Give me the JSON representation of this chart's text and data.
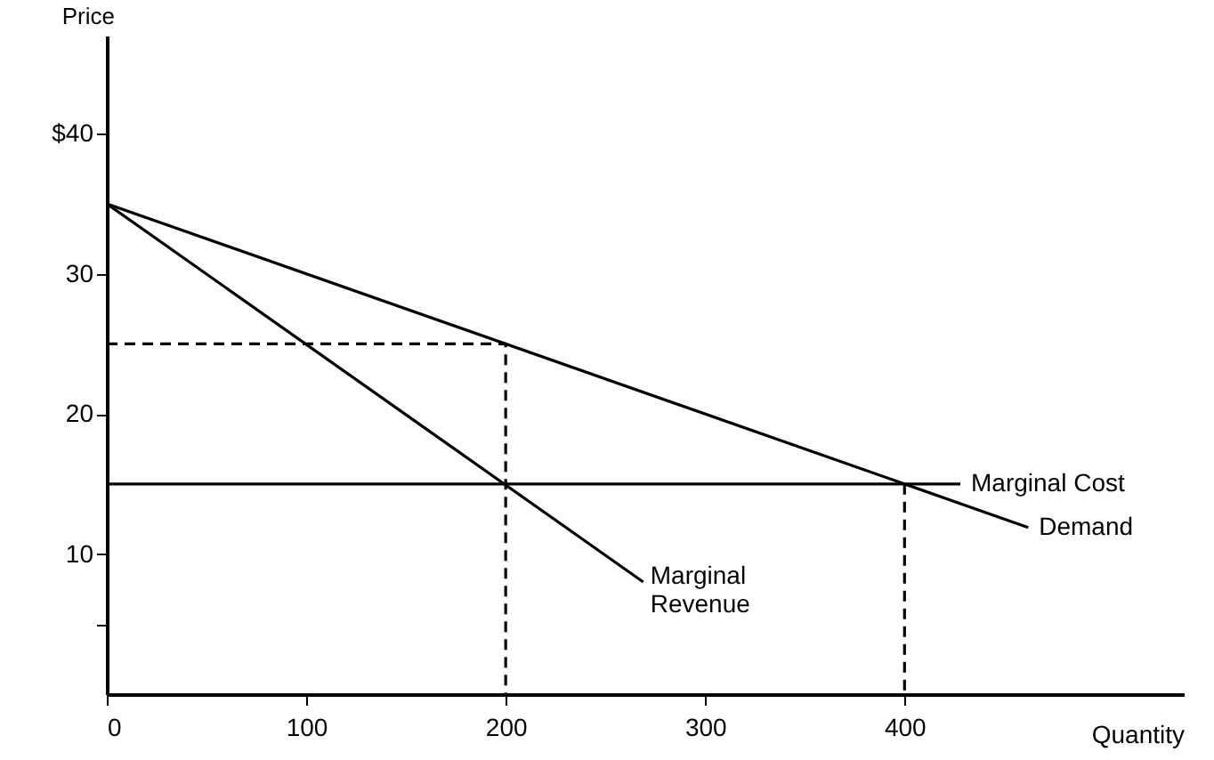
{
  "chart_data": {
    "type": "line",
    "xlabel": "Quantity",
    "ylabel": "Price",
    "xlim": [
      0,
      540
    ],
    "ylim": [
      0,
      47
    ],
    "xticks": [
      0,
      100,
      200,
      300,
      400
    ],
    "yticks": [
      {
        "value": 5,
        "label": null
      },
      10,
      20,
      30,
      {
        "value": 40,
        "label": "$40"
      }
    ],
    "grid": false,
    "marker": "none",
    "series": [
      {
        "name": "Demand",
        "color": "#000000",
        "x": [
          0,
          462
        ],
        "values": [
          35,
          11.9
        ]
      },
      {
        "name": "Marginal Revenue",
        "color": "#000000",
        "x": [
          0,
          269
        ],
        "values": [
          35,
          8
        ]
      },
      {
        "name": "Marginal Cost",
        "color": "#000000",
        "x": [
          0,
          428
        ],
        "values": [
          15,
          15
        ]
      },
      {
        "color": "#000000",
        "line_style": "dashed",
        "x": [
          0,
          200,
          200
        ],
        "values": [
          25,
          25,
          0
        ]
      },
      {
        "color": "#000000",
        "line_style": "dashed",
        "x": [
          400,
          400
        ],
        "values": [
          15,
          0
        ]
      }
    ]
  }
}
